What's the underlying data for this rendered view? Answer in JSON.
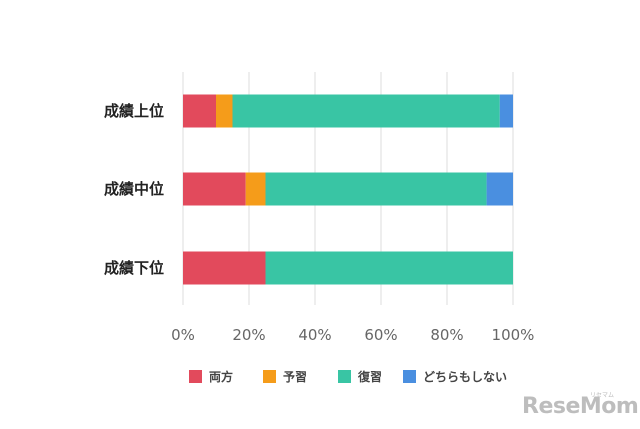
{
  "chart_data": {
    "type": "bar",
    "orientation": "horizontal",
    "stacked": true,
    "categories": [
      "成績上位",
      "成績中位",
      "成績下位"
    ],
    "series": [
      {
        "name": "両方",
        "color": "#e24a5c",
        "values": [
          10,
          19,
          25
        ]
      },
      {
        "name": "予習",
        "color": "#f59c1a",
        "values": [
          5,
          6,
          0
        ]
      },
      {
        "name": "復習",
        "color": "#39c5a4",
        "values": [
          81,
          67,
          75
        ]
      },
      {
        "name": "どちらもしない",
        "color": "#4a8fe0",
        "values": [
          4,
          8,
          0
        ]
      }
    ],
    "xticks": [
      "0%",
      "20%",
      "40%",
      "60%",
      "80%",
      "100%"
    ],
    "xlim": [
      0,
      100
    ],
    "grid": true,
    "legend_position": "bottom"
  },
  "watermark": {
    "logo": "ReseMom",
    "sub": "リセマム"
  }
}
